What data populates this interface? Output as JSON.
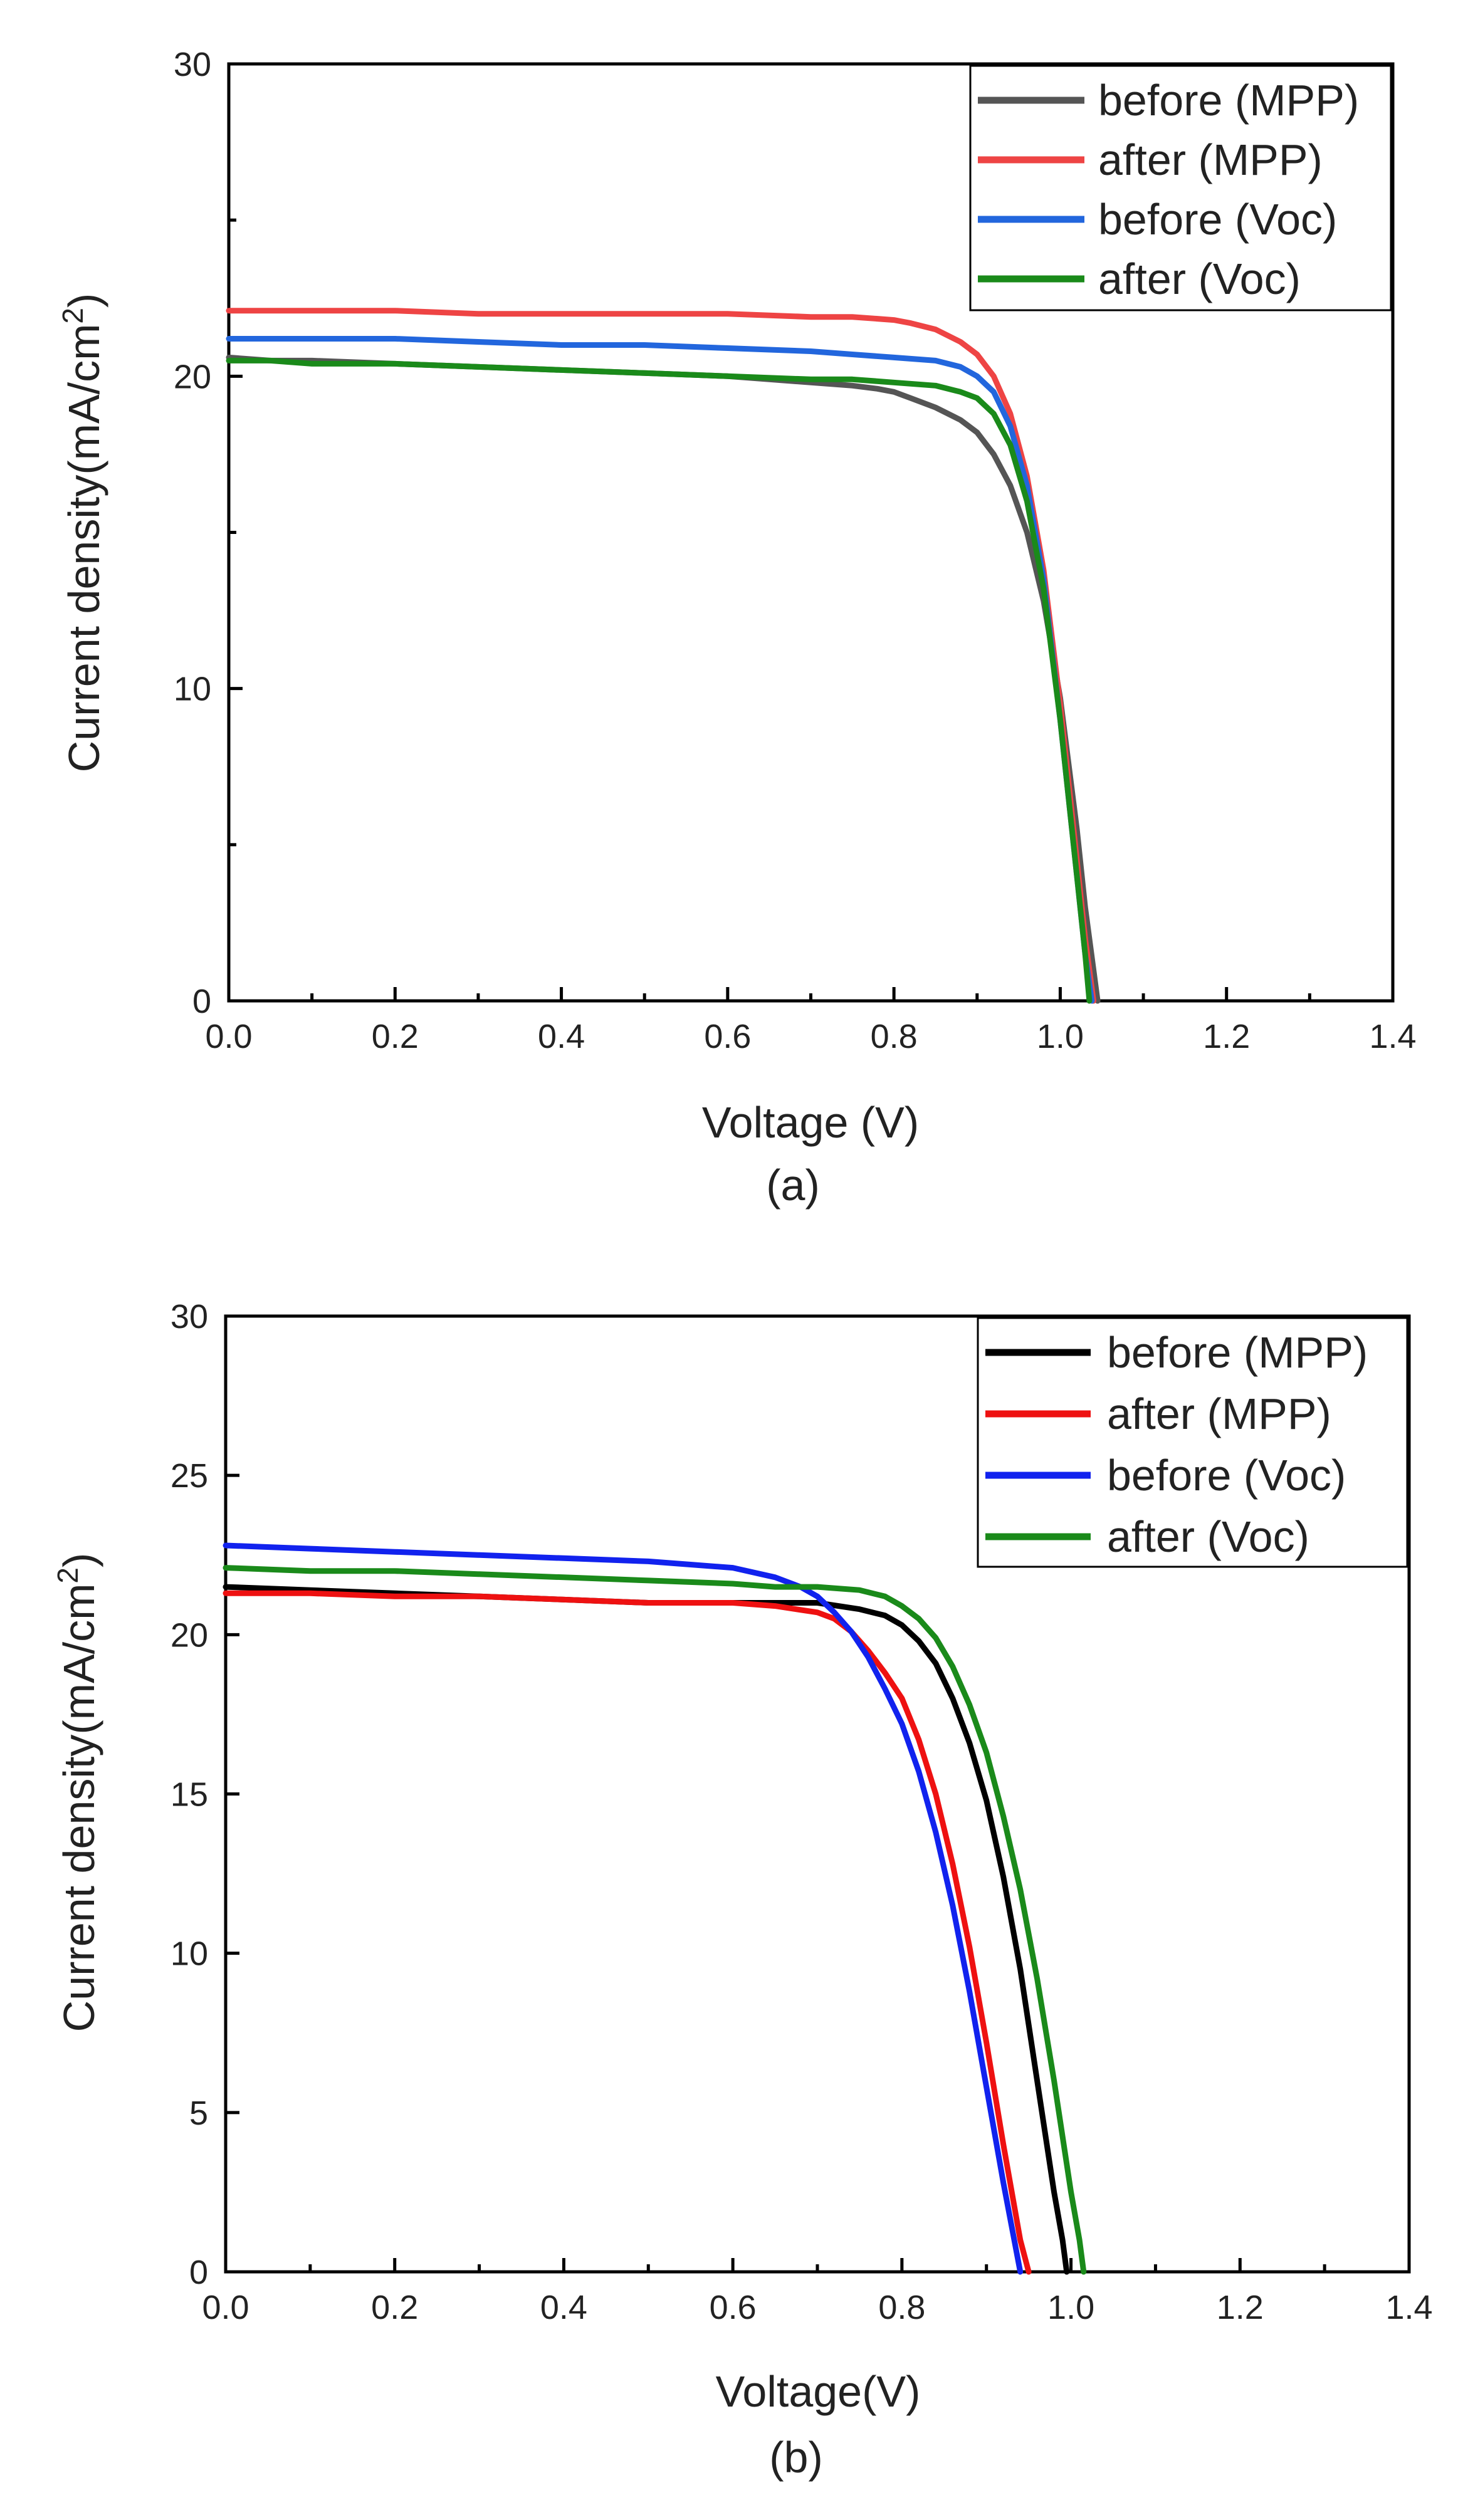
{
  "chart_data": [
    {
      "type": "line",
      "caption": "(a)",
      "title": "",
      "xlabel": "Voltage (V)",
      "ylabel_main": "Current density(mA/cm",
      "ylabel_sup": "2",
      "ylabel_close": ")",
      "xlim": [
        0,
        1.4
      ],
      "ylim": [
        0,
        30
      ],
      "xticks": [
        0.0,
        0.2,
        0.4,
        0.6,
        0.8,
        1.0,
        1.2,
        1.4
      ],
      "xtick_labels": [
        "0.0",
        "0.2",
        "0.4",
        "0.6",
        "0.8",
        "1.0",
        "1.2",
        "1.4"
      ],
      "yticks": [
        0,
        10,
        20,
        30
      ],
      "ytick_labels": [
        "0",
        "10",
        "20",
        "30"
      ],
      "yminor": [
        5,
        15,
        25
      ],
      "xminor": [
        0.1,
        0.3,
        0.5,
        0.7,
        0.9,
        1.1,
        1.3
      ],
      "legend_position": "top-right",
      "series": [
        {
          "name": "before (MPP)",
          "color": "#555555",
          "x": [
            0,
            0.05,
            0.1,
            0.2,
            0.3,
            0.4,
            0.5,
            0.6,
            0.65,
            0.7,
            0.75,
            0.78,
            0.8,
            0.82,
            0.85,
            0.88,
            0.9,
            0.92,
            0.94,
            0.96,
            0.98,
            1.0,
            1.02,
            1.03,
            1.04,
            1.045
          ],
          "y": [
            20.6,
            20.5,
            20.5,
            20.4,
            20.3,
            20.2,
            20.1,
            20.0,
            19.9,
            19.8,
            19.7,
            19.6,
            19.5,
            19.3,
            19.0,
            18.6,
            18.2,
            17.5,
            16.5,
            15.0,
            12.8,
            9.7,
            5.5,
            3.0,
            1.0,
            0
          ]
        },
        {
          "name": "after (MPP)",
          "color": "#ee4444",
          "x": [
            0,
            0.05,
            0.1,
            0.2,
            0.3,
            0.4,
            0.5,
            0.6,
            0.7,
            0.75,
            0.8,
            0.82,
            0.85,
            0.88,
            0.9,
            0.92,
            0.94,
            0.96,
            0.98,
            1.0,
            1.02,
            1.03,
            1.04
          ],
          "y": [
            22.1,
            22.1,
            22.1,
            22.1,
            22.0,
            22.0,
            22.0,
            22.0,
            21.9,
            21.9,
            21.8,
            21.7,
            21.5,
            21.1,
            20.7,
            20.0,
            18.8,
            16.8,
            13.8,
            9.5,
            4.5,
            2.0,
            0
          ]
        },
        {
          "name": "before (Voc)",
          "color": "#2266dd",
          "x": [
            0,
            0.05,
            0.1,
            0.2,
            0.3,
            0.4,
            0.5,
            0.6,
            0.7,
            0.75,
            0.8,
            0.85,
            0.88,
            0.9,
            0.92,
            0.94,
            0.96,
            0.98,
            1.0,
            1.02,
            1.03,
            1.038
          ],
          "y": [
            21.2,
            21.2,
            21.2,
            21.2,
            21.1,
            21.0,
            21.0,
            20.9,
            20.8,
            20.7,
            20.6,
            20.5,
            20.3,
            20.0,
            19.5,
            18.4,
            16.5,
            13.5,
            9.0,
            4.0,
            1.5,
            0
          ]
        },
        {
          "name": "after (Voc)",
          "color": "#1a8a1a",
          "x": [
            0,
            0.05,
            0.1,
            0.2,
            0.3,
            0.4,
            0.5,
            0.6,
            0.7,
            0.75,
            0.8,
            0.85,
            0.88,
            0.9,
            0.92,
            0.94,
            0.96,
            0.98,
            1.0,
            1.02,
            1.03,
            1.035
          ],
          "y": [
            20.5,
            20.5,
            20.4,
            20.4,
            20.3,
            20.2,
            20.1,
            20.0,
            19.9,
            19.9,
            19.8,
            19.7,
            19.5,
            19.3,
            18.8,
            17.8,
            16.0,
            13.2,
            9.0,
            4.0,
            1.5,
            0
          ]
        }
      ]
    },
    {
      "type": "line",
      "caption": "(b)",
      "title": "",
      "xlabel": "Voltage(V)",
      "ylabel_main": "Current density(mA/cm",
      "ylabel_sup": "2",
      "ylabel_close": ")",
      "xlim": [
        0,
        1.4
      ],
      "ylim": [
        0,
        30
      ],
      "xticks": [
        0.0,
        0.2,
        0.4,
        0.6,
        0.8,
        1.0,
        1.2,
        1.4
      ],
      "xtick_labels": [
        "0.0",
        "0.2",
        "0.4",
        "0.6",
        "0.8",
        "1.0",
        "1.2",
        "1.4"
      ],
      "yticks": [
        0,
        5,
        10,
        15,
        20,
        25,
        30
      ],
      "ytick_labels": [
        "0",
        "5",
        "10",
        "15",
        "20",
        "25",
        "30"
      ],
      "yminor": [],
      "xminor": [
        0.1,
        0.3,
        0.5,
        0.7,
        0.9,
        1.1,
        1.3
      ],
      "legend_position": "top-right",
      "series": [
        {
          "name": "before (MPP)",
          "color": "#000000",
          "x": [
            0,
            0.1,
            0.2,
            0.3,
            0.4,
            0.5,
            0.6,
            0.65,
            0.7,
            0.75,
            0.78,
            0.8,
            0.82,
            0.84,
            0.86,
            0.88,
            0.9,
            0.92,
            0.94,
            0.96,
            0.98,
            0.99,
            0.995
          ],
          "y": [
            21.5,
            21.4,
            21.3,
            21.2,
            21.1,
            21.0,
            21.0,
            21.0,
            21.0,
            20.8,
            20.6,
            20.3,
            19.8,
            19.1,
            18.0,
            16.6,
            14.8,
            12.4,
            9.5,
            6.0,
            2.5,
            1.0,
            0
          ]
        },
        {
          "name": "after (MPP)",
          "color": "#ee1111",
          "x": [
            0,
            0.1,
            0.2,
            0.3,
            0.4,
            0.5,
            0.6,
            0.65,
            0.7,
            0.72,
            0.74,
            0.76,
            0.78,
            0.8,
            0.82,
            0.84,
            0.86,
            0.88,
            0.9,
            0.92,
            0.94,
            0.95
          ],
          "y": [
            21.3,
            21.3,
            21.2,
            21.2,
            21.1,
            21.0,
            21.0,
            20.9,
            20.7,
            20.5,
            20.1,
            19.5,
            18.8,
            18.0,
            16.7,
            15.0,
            12.8,
            10.2,
            7.2,
            4.0,
            1.0,
            0
          ]
        },
        {
          "name": "before (Voc)",
          "color": "#1122ee",
          "x": [
            0,
            0.1,
            0.2,
            0.3,
            0.4,
            0.5,
            0.55,
            0.6,
            0.65,
            0.68,
            0.7,
            0.72,
            0.74,
            0.76,
            0.78,
            0.8,
            0.82,
            0.84,
            0.86,
            0.88,
            0.9,
            0.92,
            0.94
          ],
          "y": [
            22.8,
            22.7,
            22.6,
            22.5,
            22.4,
            22.3,
            22.2,
            22.1,
            21.8,
            21.5,
            21.2,
            20.7,
            20.1,
            19.3,
            18.3,
            17.2,
            15.7,
            13.8,
            11.5,
            8.8,
            5.8,
            2.8,
            0
          ]
        },
        {
          "name": "after (Voc)",
          "color": "#1a8a1a",
          "x": [
            0,
            0.1,
            0.2,
            0.3,
            0.4,
            0.5,
            0.6,
            0.65,
            0.7,
            0.75,
            0.78,
            0.8,
            0.82,
            0.84,
            0.86,
            0.88,
            0.9,
            0.92,
            0.94,
            0.96,
            0.98,
            1.0,
            1.01,
            1.015
          ],
          "y": [
            22.1,
            22.0,
            22.0,
            21.9,
            21.8,
            21.7,
            21.6,
            21.5,
            21.5,
            21.4,
            21.2,
            20.9,
            20.5,
            19.9,
            19.0,
            17.8,
            16.3,
            14.3,
            12.0,
            9.2,
            6.0,
            2.5,
            1.0,
            0
          ]
        }
      ]
    }
  ]
}
